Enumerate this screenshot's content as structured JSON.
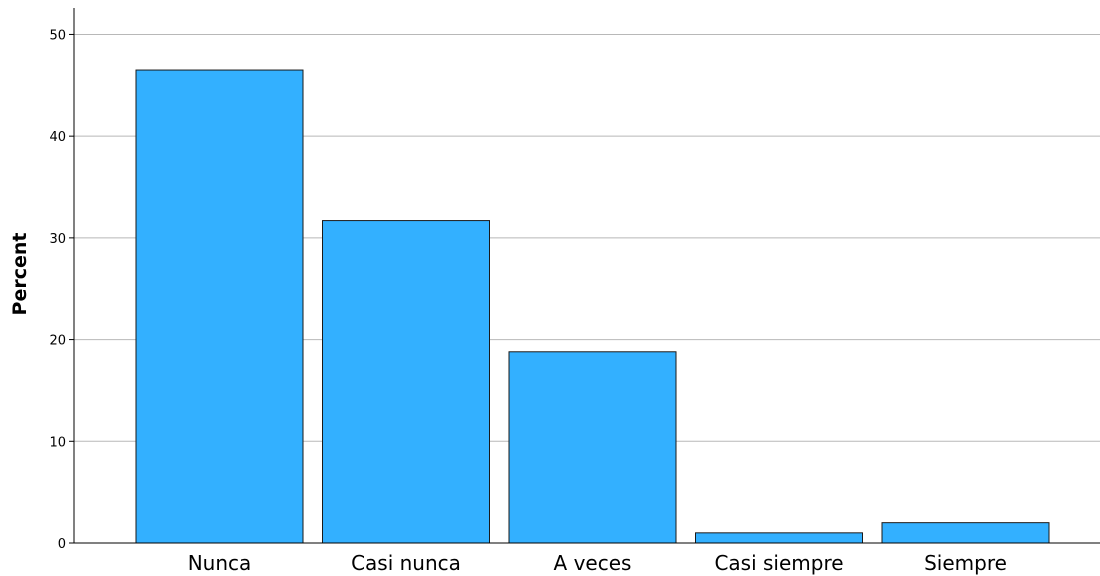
{
  "chart_data": {
    "type": "bar",
    "title": "",
    "xlabel": "",
    "ylabel": "Percent",
    "categories": [
      "Nunca",
      "Casi nunca",
      "A veces",
      "Casi siempre",
      "Siempre"
    ],
    "values": [
      46.5,
      31.7,
      18.8,
      1.0,
      2.0
    ],
    "ylim": [
      0,
      52.6
    ],
    "yticks": [
      0,
      10,
      20,
      30,
      40,
      50
    ],
    "grid": true,
    "colors": {
      "bar_fill": "#33b0ff",
      "bar_stroke": "#1a1a1a",
      "grid": "#b8b8b8",
      "axis": "#000000"
    }
  }
}
